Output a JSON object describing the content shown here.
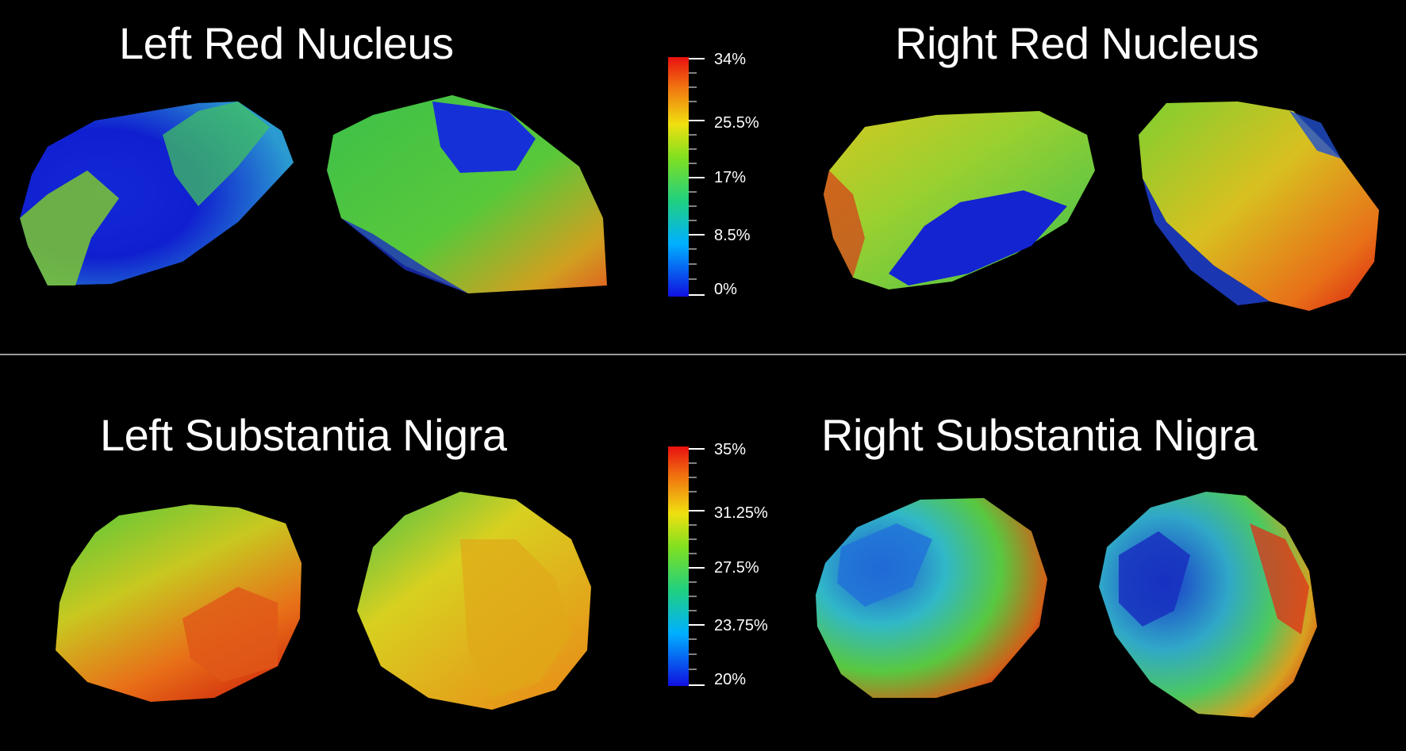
{
  "panels": {
    "top": {
      "left_title": "Left Red Nucleus",
      "right_title": "Right Red Nucleus",
      "colorbar": {
        "tick_labels": [
          "34%",
          "25.5%",
          "17%",
          "8.5%",
          "0%"
        ],
        "min": 0,
        "max": 34,
        "unit": "%"
      }
    },
    "bottom": {
      "left_title": "Left Substantia Nigra",
      "right_title": "Right Substantia Nigra",
      "colorbar": {
        "tick_labels": [
          "35%",
          "31.25%",
          "27.5%",
          "23.75%",
          "20%"
        ],
        "min": 20,
        "max": 35,
        "unit": "%"
      }
    }
  },
  "colormap": [
    "#1010d8",
    "#00a8ff",
    "#20d070",
    "#7ed321",
    "#f0e000",
    "#f08010",
    "#e01010"
  ],
  "background": "#000000"
}
